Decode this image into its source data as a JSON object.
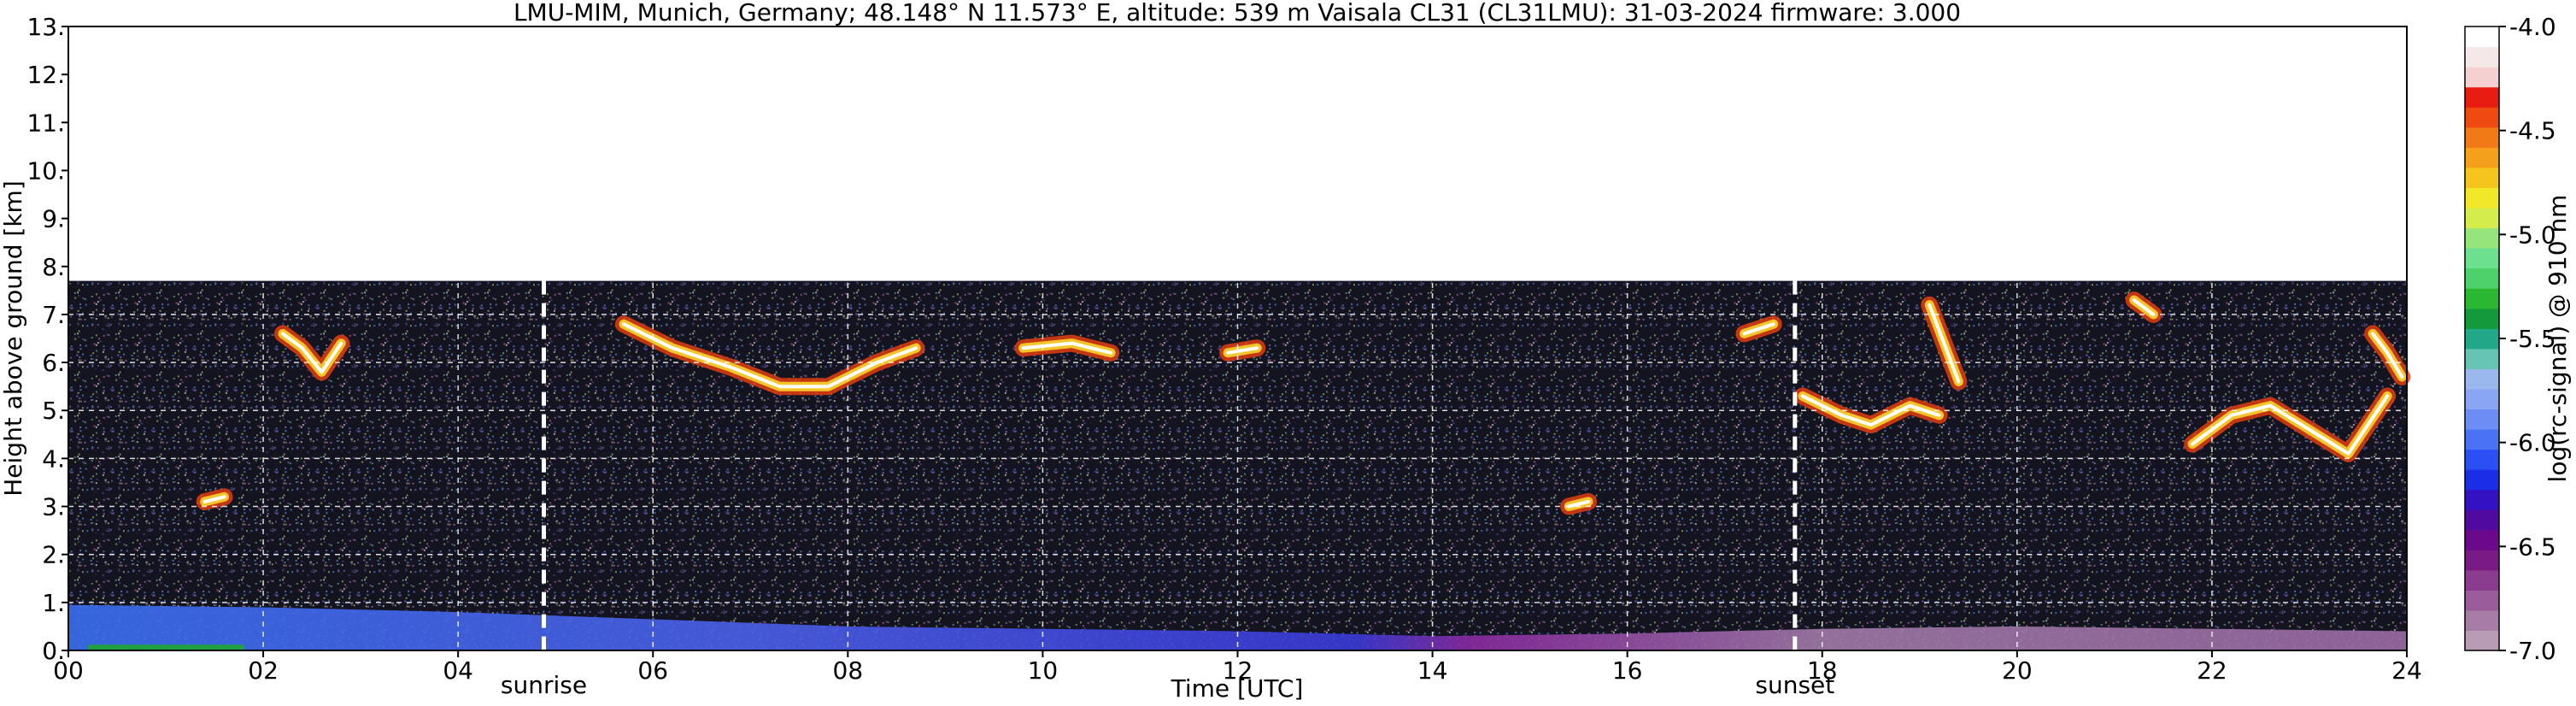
{
  "chart_data": {
    "type": "heatmap",
    "title": "LMU-MIM, Munich, Germany; 48.148° N 11.573° E, altitude: 539 m    Vaisala CL31 (CL31LMU): 31-03-2024    firmware: 3.000",
    "xlabel": "Time [UTC]",
    "ylabel": "Height above ground [km]",
    "xlim": [
      0,
      24
    ],
    "ylim": [
      0,
      13
    ],
    "x_ticks": [
      "00",
      "02",
      "04",
      "06",
      "08",
      "10",
      "12",
      "14",
      "16",
      "18",
      "20",
      "22",
      "24"
    ],
    "y_ticks": [
      "0.",
      "1.",
      "2.",
      "3.",
      "4.",
      "5.",
      "6.",
      "7.",
      "8.",
      "9.",
      "10.",
      "11.",
      "12.",
      "13."
    ],
    "grid": true,
    "data_top_km": 7.7,
    "annotations": [
      {
        "text": "sunrise",
        "x": 4.88
      },
      {
        "text": "sunset",
        "x": 17.72
      }
    ],
    "colorbar": {
      "label": "log(rc-signal) @ 910 nm",
      "range": [
        -7.0,
        -4.0
      ],
      "ticks": [
        "-4.0",
        "-4.5",
        "-5.0",
        "-5.5",
        "-6.0",
        "-6.5",
        "-7.0"
      ],
      "colors": [
        "#b89bb4",
        "#a67da4",
        "#9a5c9a",
        "#8b3c8f",
        "#7a1a85",
        "#6a0a8a",
        "#500aa0",
        "#3412c4",
        "#1a2ee8",
        "#2a50f4",
        "#4a72f4",
        "#6c8ef4",
        "#8aa6f2",
        "#9ab8ee",
        "#66c4b4",
        "#22a888",
        "#139a3a",
        "#2ab832",
        "#4ed06a",
        "#6ce08e",
        "#94e67a",
        "#d4ec4c",
        "#f2e82a",
        "#f4c51c",
        "#f4a01a",
        "#f27a16",
        "#ee4a12",
        "#e81c10",
        "#f4d0d0",
        "#f4e8e8",
        "#ffffff"
      ]
    },
    "cloud_layers": [
      {
        "t": [
          2.2,
          2.4,
          2.6,
          2.8
        ],
        "h": [
          6.6,
          6.3,
          5.8,
          6.4
        ]
      },
      {
        "t": [
          5.7,
          6.2,
          6.8,
          7.3,
          7.8,
          8.3,
          8.7
        ],
        "h": [
          6.8,
          6.3,
          5.9,
          5.5,
          5.5,
          6.0,
          6.3
        ]
      },
      {
        "t": [
          9.8,
          10.3,
          10.7
        ],
        "h": [
          6.3,
          6.4,
          6.2
        ]
      },
      {
        "t": [
          11.9,
          12.2
        ],
        "h": [
          6.2,
          6.3
        ]
      },
      {
        "t": [
          17.2,
          17.5
        ],
        "h": [
          6.6,
          6.8
        ]
      },
      {
        "t": [
          17.8,
          18.2,
          18.5,
          18.9,
          19.2
        ],
        "h": [
          5.3,
          4.9,
          4.7,
          5.1,
          4.9
        ]
      },
      {
        "t": [
          19.1,
          19.25,
          19.4
        ],
        "h": [
          7.2,
          6.4,
          5.6
        ]
      },
      {
        "t": [
          21.2,
          21.4
        ],
        "h": [
          7.3,
          7.0
        ]
      },
      {
        "t": [
          21.8,
          22.2,
          22.6,
          23.0,
          23.4,
          23.8
        ],
        "h": [
          4.3,
          4.9,
          5.1,
          4.6,
          4.1,
          5.3
        ]
      },
      {
        "t": [
          23.65,
          23.8,
          23.95
        ],
        "h": [
          6.6,
          6.2,
          5.7
        ]
      },
      {
        "t": [
          1.4,
          1.6
        ],
        "h": [
          3.1,
          3.2
        ]
      },
      {
        "t": [
          15.4,
          15.6
        ],
        "h": [
          3.0,
          3.1
        ]
      }
    ],
    "boundary_layer": {
      "t": [
        0,
        2,
        4,
        6,
        8,
        10,
        12,
        14,
        16,
        18,
        20,
        22,
        24
      ],
      "h": [
        0.95,
        0.9,
        0.8,
        0.65,
        0.5,
        0.45,
        0.4,
        0.3,
        0.35,
        0.45,
        0.5,
        0.45,
        0.4
      ]
    }
  }
}
